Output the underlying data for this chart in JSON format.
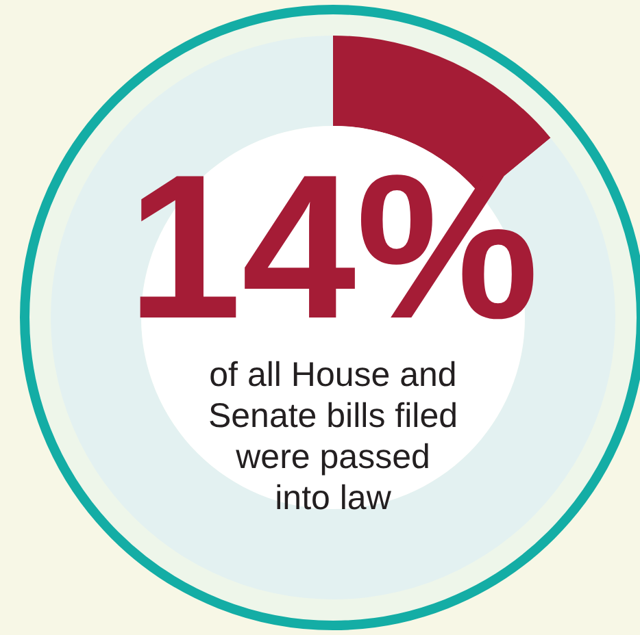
{
  "chart_data": {
    "type": "donut",
    "categories": [
      null,
      null
    ],
    "values": [
      14,
      86
    ],
    "colors": [
      "#a51c36",
      "#e3f1f1"
    ],
    "value_labels": [
      "14%",
      null
    ],
    "annotations": [
      "of all House and\nSenate bills filed\nwere passed\ninto law"
    ]
  }
}
